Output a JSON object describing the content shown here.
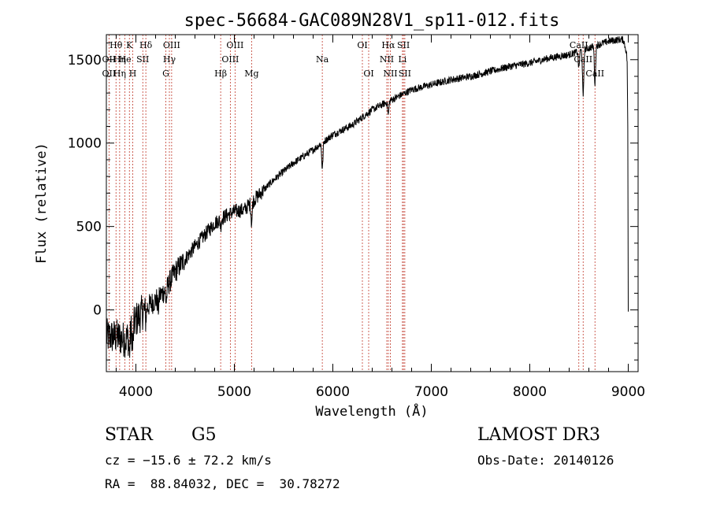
{
  "chart_data": {
    "type": "line",
    "title": "spec-56684-GAC089N28V1_sp11-012.fits",
    "xlabel": "Wavelength (Å)",
    "ylabel": "Flux (relative)",
    "xlim": [
      3700,
      9100
    ],
    "ylim": [
      -370,
      1650
    ],
    "xticks": [
      4000,
      5000,
      6000,
      7000,
      8000,
      9000
    ],
    "yticks": [
      0,
      500,
      1000,
      1500
    ],
    "spectrum_trend": {
      "x": [
        3700,
        3800,
        3900,
        4000,
        4100,
        4200,
        4300,
        4400,
        4600,
        4800,
        4900,
        5000,
        5100,
        5200,
        5400,
        5600,
        5800,
        6000,
        6200,
        6400,
        6600,
        6800,
        7000,
        7200,
        7400,
        7600,
        7800,
        8000,
        8200,
        8400,
        8500,
        8600,
        8700,
        8800,
        8900,
        8950,
        8980,
        9000
      ],
      "y": [
        -160,
        -160,
        -180,
        -60,
        10,
        60,
        120,
        230,
        380,
        520,
        560,
        590,
        600,
        660,
        780,
        880,
        960,
        1050,
        1110,
        1200,
        1260,
        1320,
        1350,
        1380,
        1400,
        1430,
        1460,
        1480,
        1510,
        1530,
        1550,
        1570,
        1590,
        1610,
        1620,
        1620,
        1550,
        1400
      ]
    },
    "absorption_features": [
      {
        "x": 3934,
        "depth": 120
      },
      {
        "x": 3968,
        "depth": 120
      },
      {
        "x": 4101,
        "depth": 60
      },
      {
        "x": 4226,
        "depth": 70
      },
      {
        "x": 4308,
        "depth": 80
      },
      {
        "x": 4861,
        "depth": 40
      },
      {
        "x": 5175,
        "depth": 120
      },
      {
        "x": 5893,
        "depth": 160
      },
      {
        "x": 6563,
        "depth": 80
      },
      {
        "x": 8498,
        "depth": 100
      },
      {
        "x": 8542,
        "depth": 290
      },
      {
        "x": 8662,
        "depth": 230
      }
    ],
    "emission_lines": [
      {
        "label": "Hθ",
        "x": 3798,
        "row": 0
      },
      {
        "label": "OII",
        "x": 3727,
        "row": 1
      },
      {
        "label": "OII",
        "x": 3727,
        "row": 2
      },
      {
        "label": "Hη",
        "x": 3835,
        "row": 1
      },
      {
        "label": "Hη",
        "x": 3835,
        "row": 2
      },
      {
        "label": "K",
        "x": 3934,
        "row": 0
      },
      {
        "label": "He",
        "x": 3889,
        "row": 1
      },
      {
        "label": "H",
        "x": 3968,
        "row": 2
      },
      {
        "label": "Hδ",
        "x": 4101,
        "row": 0
      },
      {
        "label": "SII",
        "x": 4070,
        "row": 1
      },
      {
        "label": "OIII",
        "x": 4363,
        "row": 0
      },
      {
        "label": "Hγ",
        "x": 4340,
        "row": 1
      },
      {
        "label": "G",
        "x": 4304,
        "row": 2
      },
      {
        "label": "Hβ",
        "x": 4861,
        "row": 2
      },
      {
        "label": "OIII",
        "x": 5007,
        "row": 0
      },
      {
        "label": "OIII",
        "x": 4959,
        "row": 1
      },
      {
        "label": "Mg",
        "x": 5175,
        "row": 2
      },
      {
        "label": "Na",
        "x": 5893,
        "row": 1
      },
      {
        "label": "OI",
        "x": 6300,
        "row": 0
      },
      {
        "label": "OI",
        "x": 6364,
        "row": 2
      },
      {
        "label": "Hα",
        "x": 6563,
        "row": 0
      },
      {
        "label": "NII",
        "x": 6548,
        "row": 1
      },
      {
        "label": "NII",
        "x": 6584,
        "row": 2
      },
      {
        "label": "SII",
        "x": 6717,
        "row": 0
      },
      {
        "label": "SII",
        "x": 6731,
        "row": 2
      },
      {
        "label": "Li",
        "x": 6707,
        "row": 1
      },
      {
        "label": "CaII",
        "x": 8498,
        "row": 0
      },
      {
        "label": "CaII",
        "x": 8542,
        "row": 1
      },
      {
        "label": "CaII",
        "x": 8662,
        "row": 2
      }
    ]
  },
  "info": {
    "object_class": "STAR",
    "subclass": "G5",
    "cz": "cz = −15.6 ± 72.2 km/s",
    "radec": "RA =  88.84032, DEC =  30.78272",
    "survey": "LAMOST DR3",
    "obs_date": "Obs-Date: 20140126"
  }
}
